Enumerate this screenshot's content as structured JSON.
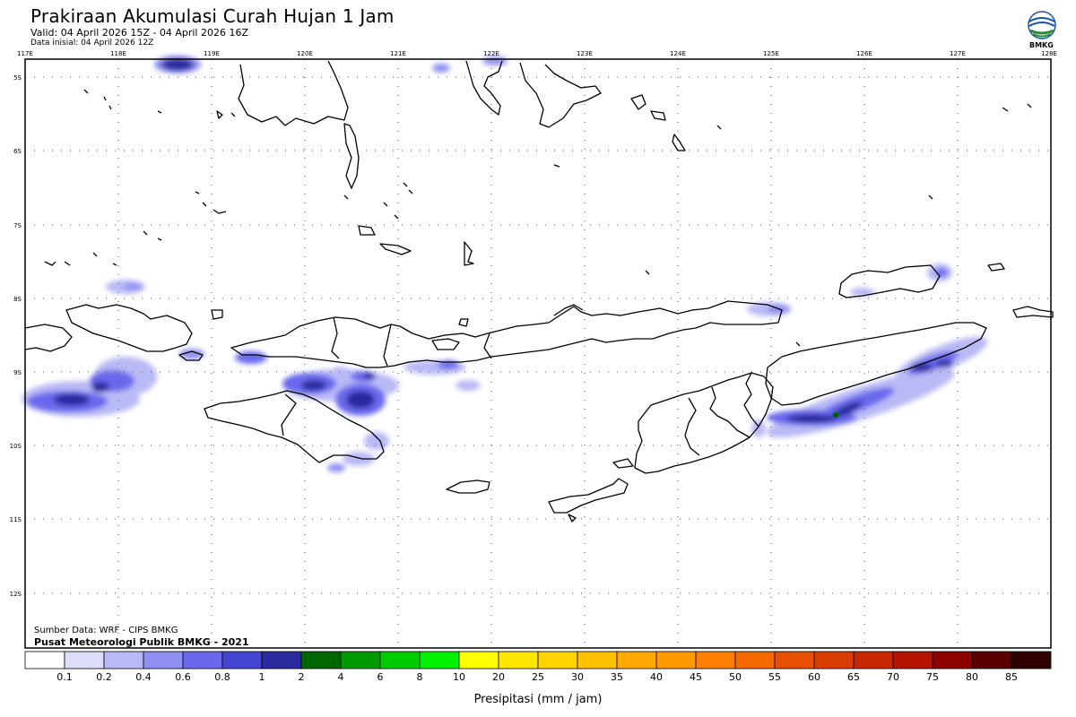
{
  "header": {
    "title": "Prakiraan Akumulasi Curah Hujan 1 Jam",
    "valid": "Valid: 04 April 2026 15Z - 04 April 2026 16Z",
    "initial": "Data inisial: 04 April 2026 12Z",
    "logo_text": "BMKG"
  },
  "map": {
    "lon_labels": [
      "117E",
      "118E",
      "119E",
      "120E",
      "121E",
      "122E",
      "123E",
      "124E",
      "125E",
      "126E",
      "127E",
      "128E"
    ],
    "lat_labels": [
      "5S",
      "6S",
      "7S",
      "8S",
      "9S",
      "10S",
      "11S",
      "12S"
    ]
  },
  "footer": {
    "source": "Sumber Data: WRF - CIPS BMKG",
    "publisher": "Pusat Meteorologi Publik BMKG - 2021",
    "axis_label": "Presipitasi (mm / jam)"
  },
  "legend": {
    "labels": [
      "0.1",
      "0.2",
      "0.4",
      "0.6",
      "0.8",
      "1",
      "2",
      "4",
      "6",
      "8",
      "10",
      "20",
      "25",
      "30",
      "35",
      "40",
      "45",
      "50",
      "55",
      "60",
      "65",
      "70",
      "75",
      "80",
      "85"
    ],
    "colors": [
      "#ffffff",
      "#dcdcfb",
      "#b9b9f6",
      "#9090f2",
      "#6969ee",
      "#4646d4",
      "#2b2ba0",
      "#006600",
      "#009900",
      "#00cc00",
      "#00f000",
      "#ffff00",
      "#ffe600",
      "#ffd400",
      "#ffc000",
      "#ffaa00",
      "#ff9900",
      "#ff7f00",
      "#f56a00",
      "#e65000",
      "#d83c00",
      "#c82800",
      "#b41400",
      "#8c0000",
      "#5a0000",
      "#300000"
    ]
  }
}
